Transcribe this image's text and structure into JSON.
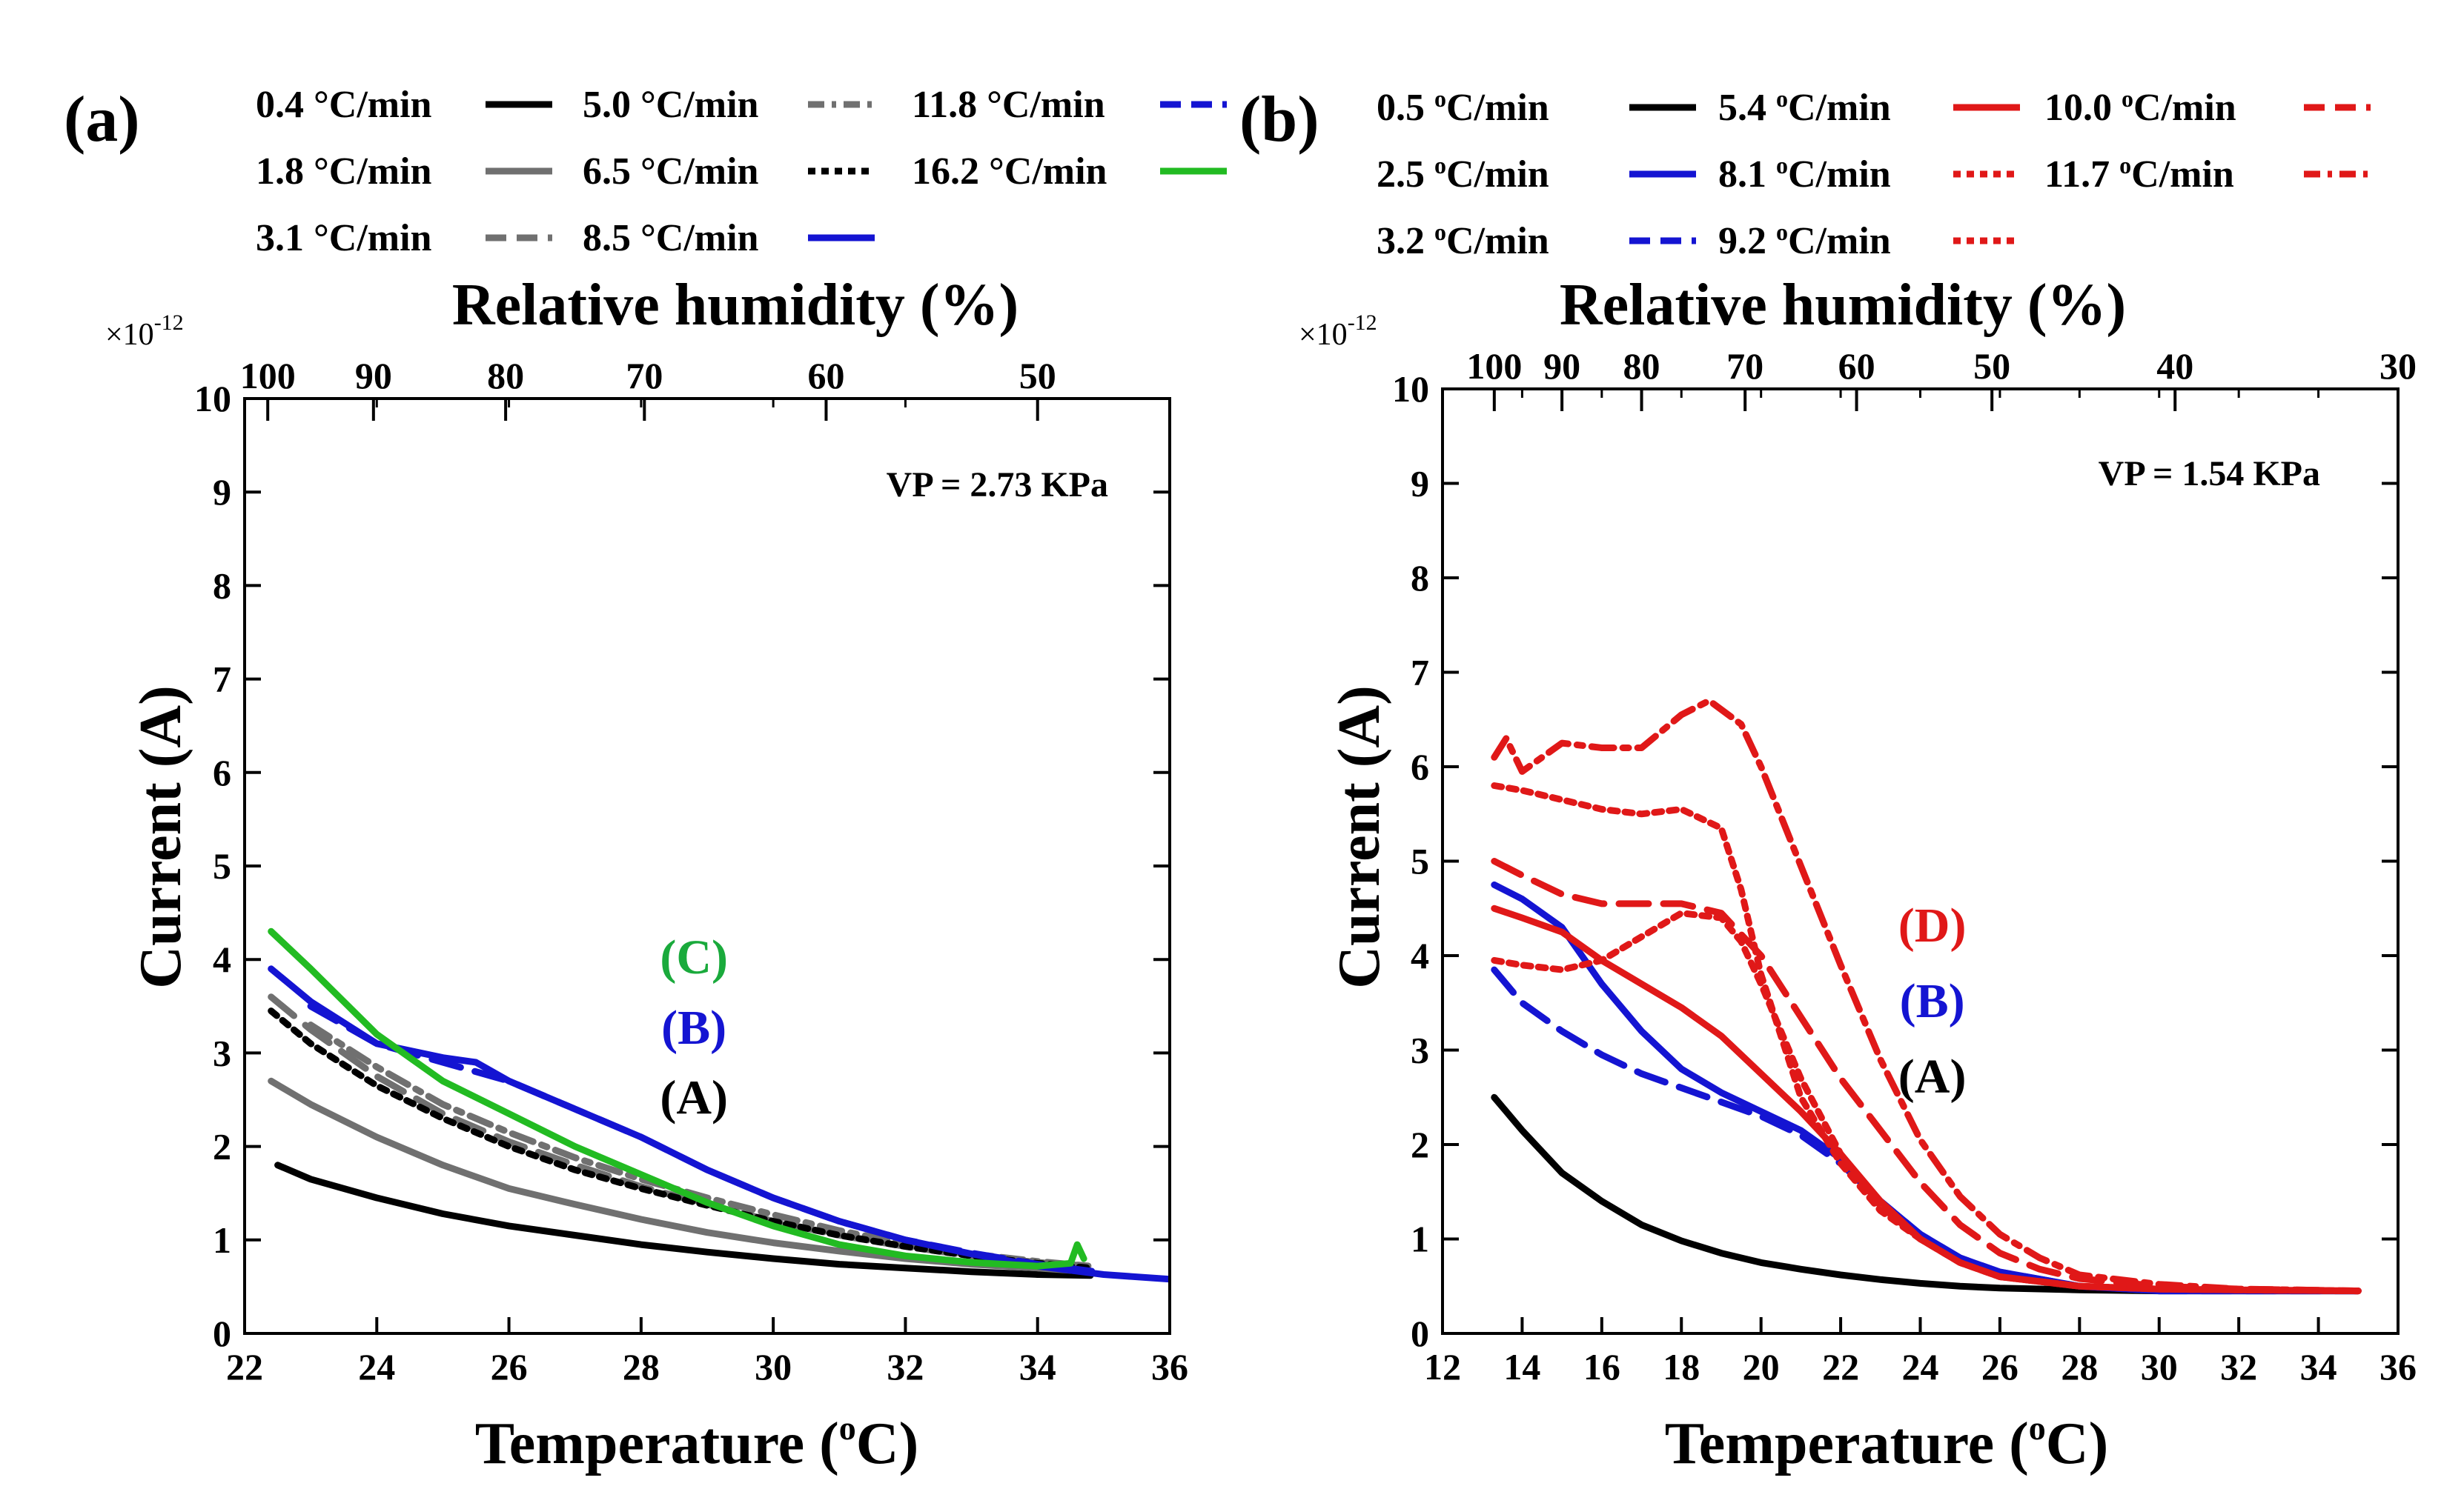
{
  "figure": {
    "description_labels": [
      "(a)",
      "(b)"
    ]
  },
  "chart_data": [
    {
      "type": "line",
      "panel_label": "(a)",
      "xlabel": "Temperature (°C)",
      "xlabel_prefix": "Temperature (",
      "xlabel_unit_sup": "o",
      "xlabel_suffix": "C)",
      "ylabel": "Current (A)",
      "top_xlabel": "Relative humidity (%)",
      "y_multiplier": "×10",
      "y_multiplier_exp": "-12",
      "xlim": [
        22,
        36
      ],
      "ylim": [
        0,
        10
      ],
      "xticks": [
        22,
        24,
        26,
        28,
        30,
        32,
        34,
        36
      ],
      "yticks": [
        0,
        1,
        2,
        3,
        4,
        5,
        6,
        7,
        8,
        9,
        10
      ],
      "top_ticks": [
        {
          "label": "100",
          "x": 22.35
        },
        {
          "label": "90",
          "x": 23.95
        },
        {
          "label": "80",
          "x": 25.95
        },
        {
          "label": "70",
          "x": 28.05
        },
        {
          "label": "60",
          "x": 30.8
        },
        {
          "label": "50",
          "x": 34.0
        }
      ],
      "annotation_vp": "VP = 2.73 KPa",
      "annotations": [
        {
          "text": "(C)",
          "color": "#1aaa3c",
          "x": 28.8,
          "y": 3.85
        },
        {
          "text": "(B)",
          "color": "#1414d2",
          "x": 28.8,
          "y": 3.1
        },
        {
          "text": "(A)",
          "color": "#000000",
          "x": 28.8,
          "y": 2.35
        }
      ],
      "legend": [
        {
          "label": "0.4 °C/min",
          "color": "#000000",
          "dash": "solid"
        },
        {
          "label": "1.8 °C/min",
          "color": "#707070",
          "dash": "solid"
        },
        {
          "label": "3.1 °C/min",
          "color": "#707070",
          "dash": "dashed"
        },
        {
          "label": "5.0 °C/min",
          "color": "#707070",
          "dash": "dashdot"
        },
        {
          "label": "6.5 °C/min",
          "color": "#000000",
          "dash": "dotted"
        },
        {
          "label": "8.5 °C/min",
          "color": "#1414d2",
          "dash": "solid"
        },
        {
          "label": "11.8 °C/min",
          "color": "#1414d2",
          "dash": "dashed"
        },
        {
          "label": "16.2 °C/min",
          "color": "#22bb22",
          "dash": "solid"
        }
      ],
      "series": [
        {
          "name": "0.4 °C/min",
          "color": "#000000",
          "dash": "solid",
          "x": [
            22.5,
            23,
            24,
            25,
            26,
            27,
            28,
            29,
            30,
            31,
            32,
            33,
            34,
            34.8
          ],
          "y": [
            1.8,
            1.65,
            1.45,
            1.28,
            1.15,
            1.05,
            0.95,
            0.87,
            0.8,
            0.74,
            0.7,
            0.66,
            0.63,
            0.62
          ]
        },
        {
          "name": "1.8 °C/min",
          "color": "#707070",
          "dash": "solid",
          "x": [
            22.4,
            23,
            24,
            25,
            26,
            27,
            28,
            29,
            30,
            31,
            32,
            33,
            34,
            34.8
          ],
          "y": [
            2.7,
            2.45,
            2.1,
            1.8,
            1.55,
            1.38,
            1.22,
            1.08,
            0.97,
            0.88,
            0.8,
            0.74,
            0.7,
            0.66
          ]
        },
        {
          "name": "3.1 °C/min",
          "color": "#707070",
          "dash": "dashed",
          "x": [
            22.4,
            23,
            24,
            25,
            26,
            27,
            28,
            29,
            30,
            31,
            32,
            33,
            34,
            34.8
          ],
          "y": [
            3.6,
            3.25,
            2.75,
            2.35,
            2.05,
            1.8,
            1.57,
            1.38,
            1.2,
            1.05,
            0.93,
            0.83,
            0.76,
            0.72
          ]
        },
        {
          "name": "5.0 °C/min",
          "color": "#707070",
          "dash": "dashdot",
          "x": [
            23,
            24,
            25,
            26,
            27,
            28,
            29,
            30,
            31,
            32,
            33,
            34,
            34.8
          ],
          "y": [
            3.3,
            2.85,
            2.45,
            2.15,
            1.88,
            1.65,
            1.45,
            1.27,
            1.1,
            0.96,
            0.85,
            0.77,
            0.72
          ]
        },
        {
          "name": "6.5 °C/min",
          "color": "#000000",
          "dash": "dotted",
          "x": [
            22.4,
            23,
            24,
            25,
            26,
            27,
            28,
            29,
            30,
            31,
            32,
            33,
            34,
            34.8
          ],
          "y": [
            3.45,
            3.1,
            2.65,
            2.3,
            2.0,
            1.75,
            1.55,
            1.37,
            1.2,
            1.05,
            0.93,
            0.83,
            0.75,
            0.7
          ]
        },
        {
          "name": "8.5 °C/min",
          "color": "#1414d2",
          "dash": "solid",
          "x": [
            22.4,
            23,
            24,
            25,
            25.5,
            26,
            27,
            28,
            29,
            30,
            31,
            32,
            33,
            34,
            35,
            36
          ],
          "y": [
            3.9,
            3.55,
            3.1,
            2.95,
            2.9,
            2.7,
            2.4,
            2.1,
            1.75,
            1.45,
            1.2,
            1.0,
            0.85,
            0.72,
            0.63,
            0.58
          ]
        },
        {
          "name": "11.8 °C/min",
          "color": "#1414d2",
          "dash": "dashed",
          "x": [
            23,
            24,
            25,
            26,
            27,
            28,
            29,
            30,
            31,
            32,
            33,
            34,
            35
          ],
          "y": [
            3.5,
            3.1,
            2.9,
            2.7,
            2.4,
            2.1,
            1.75,
            1.45,
            1.2,
            1.0,
            0.86,
            0.74,
            0.65
          ]
        },
        {
          "name": "16.2 °C/min",
          "color": "#22bb22",
          "dash": "solid",
          "x": [
            22.4,
            23,
            24,
            25,
            26,
            27,
            28,
            29,
            30,
            31,
            32,
            33,
            34,
            34.5,
            34.6,
            34.7
          ],
          "y": [
            4.3,
            3.9,
            3.2,
            2.7,
            2.35,
            2.0,
            1.7,
            1.4,
            1.15,
            0.95,
            0.83,
            0.76,
            0.72,
            0.75,
            0.95,
            0.8
          ]
        }
      ]
    },
    {
      "type": "line",
      "panel_label": "(b)",
      "xlabel": "Temperature (°C)",
      "xlabel_prefix": "Temperature (",
      "xlabel_unit_sup": "o",
      "xlabel_suffix": "C)",
      "ylabel": "Current (A)",
      "top_xlabel": "Relative humidity (%)",
      "y_multiplier": "×10",
      "y_multiplier_exp": "-12",
      "xlim": [
        12,
        36
      ],
      "ylim": [
        0,
        10
      ],
      "xticks": [
        12,
        14,
        16,
        18,
        20,
        22,
        24,
        26,
        28,
        30,
        32,
        34,
        36
      ],
      "yticks": [
        0,
        1,
        2,
        3,
        4,
        5,
        6,
        7,
        8,
        9,
        10
      ],
      "top_ticks": [
        {
          "label": "100",
          "x": 13.3
        },
        {
          "label": "90",
          "x": 15.0
        },
        {
          "label": "80",
          "x": 17.0
        },
        {
          "label": "70",
          "x": 19.6
        },
        {
          "label": "60",
          "x": 22.4
        },
        {
          "label": "50",
          "x": 25.8
        },
        {
          "label": "40",
          "x": 30.4
        },
        {
          "label": "30",
          "x": 36.0
        }
      ],
      "annotation_vp": "VP = 1.54 KPa",
      "annotations": [
        {
          "text": "(D)",
          "color": "#e01818",
          "x": 24.3,
          "y": 4.15
        },
        {
          "text": "(B)",
          "color": "#1414d2",
          "x": 24.3,
          "y": 3.35
        },
        {
          "text": "(A)",
          "color": "#000000",
          "x": 24.3,
          "y": 2.55
        }
      ],
      "legend": [
        {
          "label": "0.5 °C/min",
          "label_num": "0.5 ",
          "label_unit": "C/min",
          "color": "#000000",
          "dash": "solid"
        },
        {
          "label": "2.5 °C/min",
          "label_num": "2.5 ",
          "label_unit": "C/min",
          "color": "#1414d2",
          "dash": "solid"
        },
        {
          "label": "3.2 °C/min",
          "label_num": "3.2 ",
          "label_unit": "C/min",
          "color": "#1414d2",
          "dash": "dashed"
        },
        {
          "label": "5.4 °C/min",
          "label_num": "5.4 ",
          "label_unit": "C/min",
          "color": "#e01818",
          "dash": "solid"
        },
        {
          "label": "8.1 °C/min",
          "label_num": "8.1 ",
          "label_unit": "C/min",
          "color": "#e01818",
          "dash": "dotted"
        },
        {
          "label": "9.2 °C/min",
          "label_num": "9.2 ",
          "label_unit": "C/min",
          "color": "#e01818",
          "dash": "dotted"
        },
        {
          "label": "10.0 °C/min",
          "label_num": "10.0 ",
          "label_unit": "C/min",
          "color": "#e01818",
          "dash": "dashed"
        },
        {
          "label": "11.7 °C/min",
          "label_num": "11.7 ",
          "label_unit": "C/min",
          "color": "#e01818",
          "dash": "dashdot"
        }
      ],
      "series": [
        {
          "name": "0.5 °C/min",
          "color": "#000000",
          "dash": "solid",
          "x": [
            13.3,
            14,
            15,
            16,
            17,
            18,
            19,
            20,
            21,
            22,
            23,
            24,
            25,
            26,
            28,
            30,
            32,
            35
          ],
          "y": [
            2.5,
            2.15,
            1.7,
            1.4,
            1.15,
            0.98,
            0.85,
            0.75,
            0.68,
            0.62,
            0.57,
            0.53,
            0.5,
            0.48,
            0.46,
            0.45,
            0.45,
            0.45
          ]
        },
        {
          "name": "2.5 °C/min",
          "color": "#1414d2",
          "dash": "solid",
          "x": [
            13.3,
            14,
            15,
            16,
            17,
            18,
            19,
            20,
            21,
            22,
            23,
            24,
            25,
            26,
            28,
            30,
            32,
            35
          ],
          "y": [
            4.75,
            4.6,
            4.3,
            3.7,
            3.2,
            2.8,
            2.55,
            2.35,
            2.15,
            1.85,
            1.4,
            1.05,
            0.8,
            0.65,
            0.5,
            0.45,
            0.45,
            0.45
          ]
        },
        {
          "name": "3.2 °C/min",
          "color": "#1414d2",
          "dash": "dashed",
          "x": [
            13.3,
            14,
            15,
            16,
            17,
            18,
            19,
            20,
            21,
            22,
            23,
            24,
            25,
            26,
            28,
            30,
            32,
            35
          ],
          "y": [
            3.85,
            3.5,
            3.2,
            2.95,
            2.75,
            2.6,
            2.45,
            2.3,
            2.1,
            1.8,
            1.4,
            1.05,
            0.8,
            0.65,
            0.5,
            0.45,
            0.45,
            0.45
          ]
        },
        {
          "name": "5.4 °C/min",
          "color": "#e01818",
          "dash": "solid",
          "x": [
            13.3,
            14,
            15,
            16,
            17,
            18,
            19,
            20,
            21,
            22,
            23,
            24,
            25,
            26,
            28,
            30,
            32,
            35
          ],
          "y": [
            4.5,
            4.4,
            4.25,
            3.95,
            3.7,
            3.45,
            3.15,
            2.75,
            2.35,
            1.9,
            1.4,
            1.0,
            0.75,
            0.6,
            0.5,
            0.47,
            0.46,
            0.45
          ]
        },
        {
          "name": "8.1 °C/min",
          "color": "#e01818",
          "dash": "dotted",
          "x": [
            13.3,
            14,
            15,
            16,
            17,
            18,
            19,
            19.5,
            20,
            21,
            22,
            23,
            24,
            25,
            26,
            28,
            30,
            32,
            35
          ],
          "y": [
            5.8,
            5.75,
            5.65,
            5.55,
            5.5,
            5.55,
            5.35,
            4.7,
            3.8,
            2.5,
            1.8,
            1.3,
            1.0,
            0.75,
            0.6,
            0.5,
            0.47,
            0.46,
            0.45
          ]
        },
        {
          "name": "9.2 °C/min",
          "color": "#e01818",
          "dash": "dotted",
          "x": [
            13.3,
            14,
            15,
            16,
            17,
            18,
            19,
            19.5,
            20,
            21,
            22,
            23,
            24,
            25,
            26,
            28,
            30,
            32,
            35
          ],
          "y": [
            3.95,
            3.9,
            3.85,
            3.95,
            4.2,
            4.45,
            4.4,
            4.15,
            3.7,
            2.7,
            1.9,
            1.35,
            1.0,
            0.75,
            0.6,
            0.5,
            0.47,
            0.46,
            0.45
          ]
        },
        {
          "name": "10.0 °C/min",
          "color": "#e01818",
          "dash": "dashed",
          "x": [
            13.3,
            14,
            15,
            16,
            17,
            18,
            19,
            20,
            21,
            22,
            23,
            24,
            25,
            26,
            27,
            28,
            30,
            32,
            35
          ],
          "y": [
            5.0,
            4.85,
            4.65,
            4.55,
            4.55,
            4.55,
            4.45,
            4.0,
            3.35,
            2.7,
            2.15,
            1.6,
            1.15,
            0.85,
            0.68,
            0.58,
            0.5,
            0.47,
            0.45
          ]
        },
        {
          "name": "11.7 °C/min",
          "color": "#e01818",
          "dash": "dashdot",
          "x": [
            13.3,
            13.6,
            14,
            14.5,
            15,
            16,
            17,
            18,
            18.7,
            19.5,
            20,
            21,
            22,
            23,
            24,
            25,
            26,
            27,
            28,
            30,
            32,
            35
          ],
          "y": [
            6.1,
            6.3,
            5.95,
            6.1,
            6.25,
            6.2,
            6.2,
            6.55,
            6.7,
            6.45,
            6.0,
            4.95,
            3.9,
            2.9,
            2.05,
            1.45,
            1.05,
            0.8,
            0.62,
            0.52,
            0.47,
            0.45
          ]
        }
      ]
    }
  ]
}
